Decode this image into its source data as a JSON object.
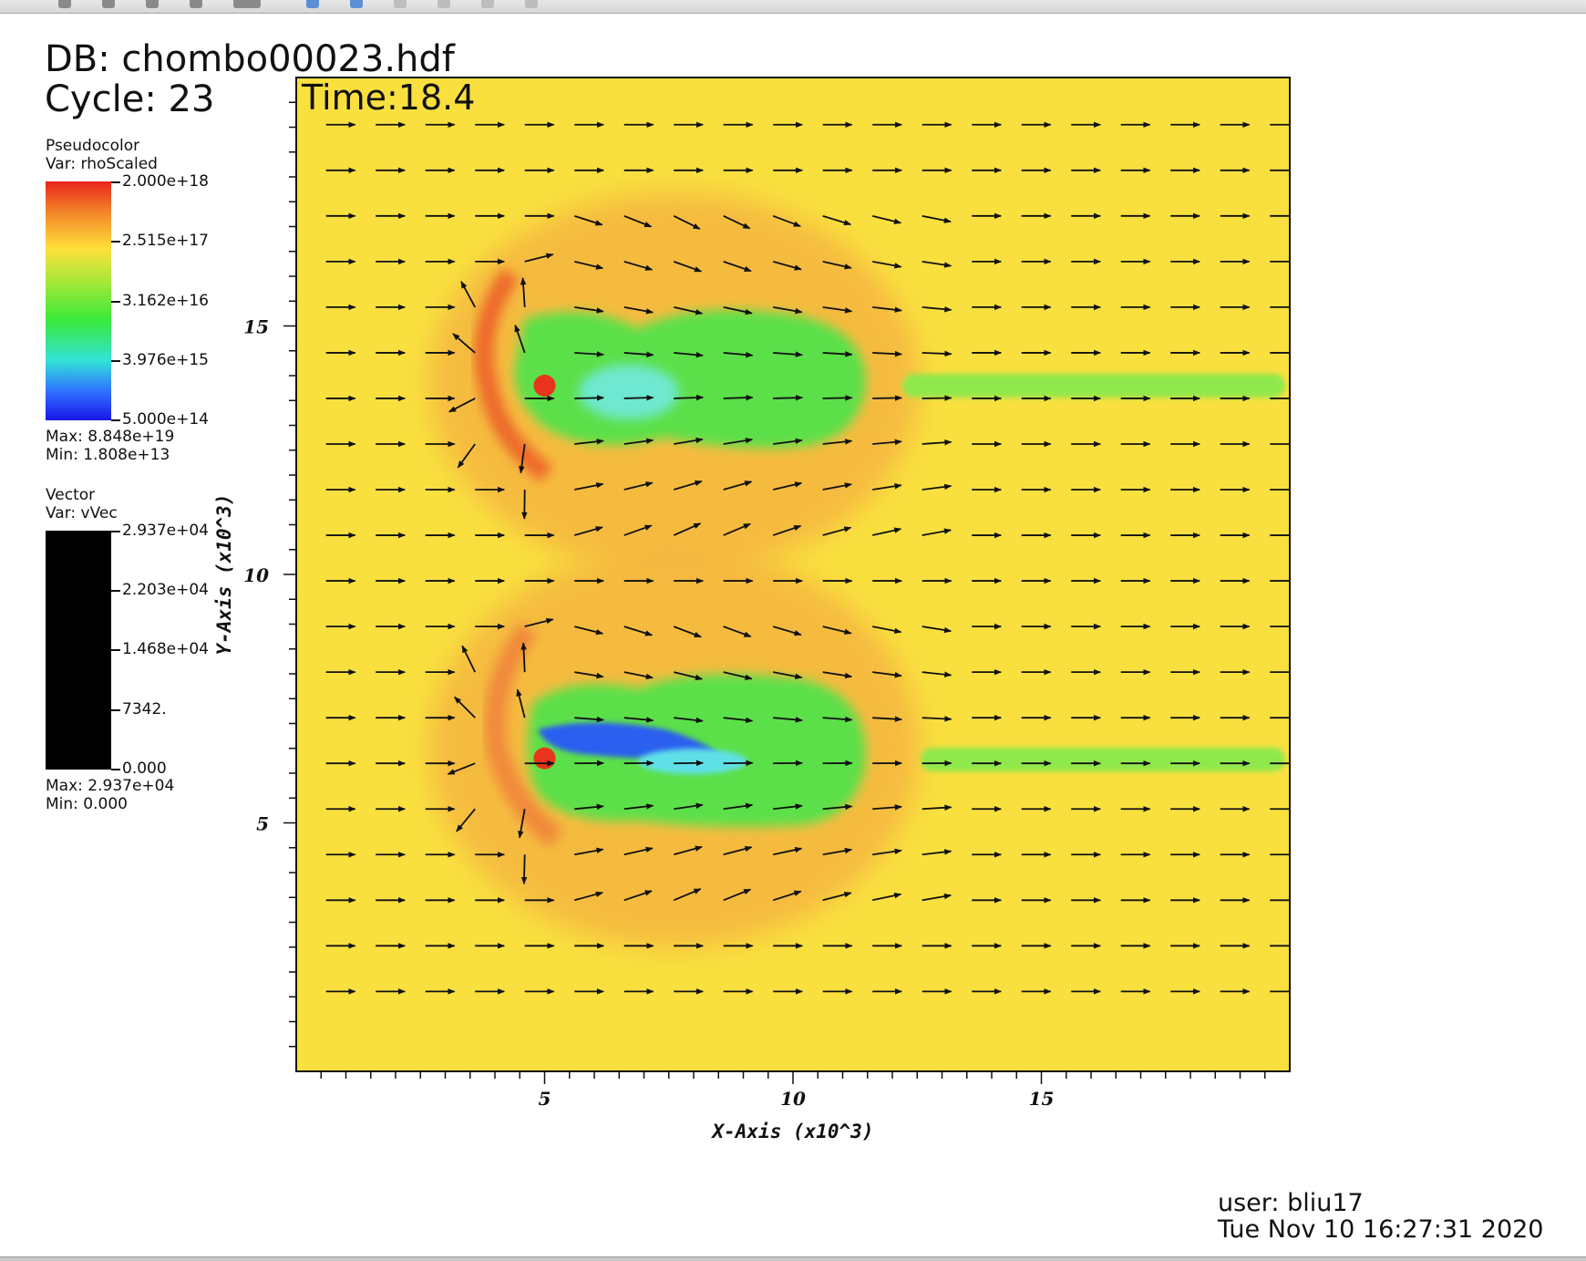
{
  "header": {
    "db": "DB: chombo00023.hdf",
    "cycle": "Cycle: 23",
    "time": "Time:18.4"
  },
  "legend_pseudocolor": {
    "title": "Pseudocolor",
    "var": "Var: rhoScaled",
    "ticks": [
      "2.000e+18",
      "2.515e+17",
      "3.162e+16",
      "3.976e+15",
      "5.000e+14"
    ],
    "max": "Max:  8.848e+19",
    "min": "Min:  1.808e+13"
  },
  "legend_vector": {
    "title": "Vector",
    "var": "Var: vVec",
    "ticks": [
      "2.937e+04",
      "2.203e+04",
      "1.468e+04",
      "7342.",
      "0.000"
    ],
    "max": "Max:  2.937e+04",
    "min": "Min:  0.000"
  },
  "footer": {
    "user": "user: bliu17",
    "datetime": "Tue Nov 10 16:27:31 2020"
  },
  "colors": {
    "background_field": "#f9e03f",
    "bow_shock": "#f08a3a",
    "cavity": "#58e04a",
    "core": "#e8341c",
    "arrow": "#111111"
  },
  "chart_data": {
    "type": "heatmap",
    "xlabel": "X-Axis (x10^3)",
    "ylabel": "Y-Axis (x10^3)",
    "xlim": [
      0,
      20
    ],
    "ylim": [
      0,
      20
    ],
    "xticks": [
      5,
      10,
      15
    ],
    "yticks": [
      5,
      10,
      15
    ],
    "overlay": "vector field (vVec)",
    "sources": [
      {
        "x": 5.0,
        "y": 13.8
      },
      {
        "x": 5.0,
        "y": 6.3
      }
    ]
  }
}
